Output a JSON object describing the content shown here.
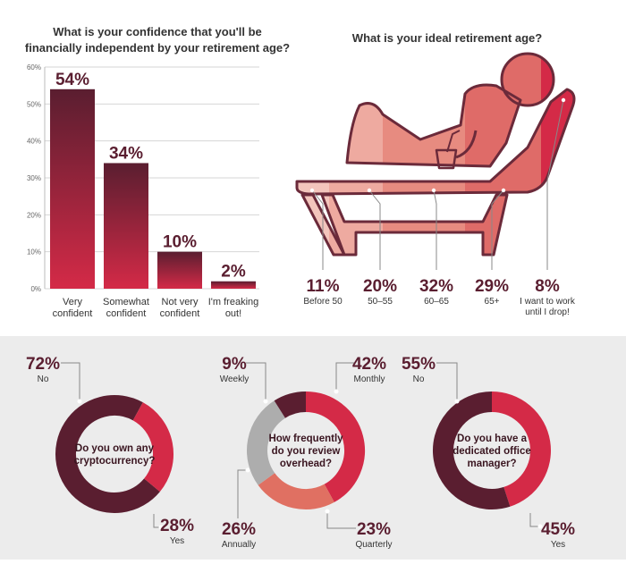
{
  "colors": {
    "dark": "#5a1e30",
    "red": "#d42a47",
    "salmon": "#e07062",
    "gray": "#adadad",
    "line": "#6b2a3a"
  },
  "chart_data": [
    {
      "type": "bar",
      "title": [
        "What is your confidence that you'll be",
        "financially independent by your retirement age?"
      ],
      "categories": [
        [
          "Very",
          "confident"
        ],
        [
          "Somewhat",
          "confident"
        ],
        [
          "Not very",
          "confident"
        ],
        [
          "I'm freaking",
          "out!"
        ]
      ],
      "values": [
        54,
        34,
        10,
        2
      ],
      "value_labels": [
        "54%",
        "34%",
        "10%",
        "2%"
      ],
      "yticks": [
        "0%",
        "10%",
        "20%",
        "30%",
        "40%",
        "50%",
        "60%"
      ],
      "ylim": [
        0,
        60
      ]
    },
    {
      "type": "bar",
      "title": "What is your ideal retirement age?",
      "categories": [
        [
          "Before 50"
        ],
        [
          "50–55"
        ],
        [
          "60–65"
        ],
        [
          "65+"
        ],
        [
          "I want to work",
          "until I drop!"
        ]
      ],
      "values": [
        11,
        20,
        32,
        29,
        8
      ],
      "value_labels": [
        "11%",
        "20%",
        "32%",
        "29%",
        "8%"
      ]
    },
    {
      "type": "pie",
      "center_text": [
        "Do you own any",
        "cryptocurrency?"
      ],
      "slices": [
        {
          "label": "No",
          "value": 72,
          "pct": "72%",
          "color": "#5a1e30"
        },
        {
          "label": "Yes",
          "value": 28,
          "pct": "28%",
          "color": "#d42a47"
        }
      ]
    },
    {
      "type": "pie",
      "center_text": [
        "How frequently",
        "do you review",
        "overhead?"
      ],
      "slices": [
        {
          "label": "Monthly",
          "value": 42,
          "pct": "42%",
          "color": "#d42a47"
        },
        {
          "label": "Quarterly",
          "value": 23,
          "pct": "23%",
          "color": "#e07062"
        },
        {
          "label": "Annually",
          "value": 26,
          "pct": "26%",
          "color": "#adadad"
        },
        {
          "label": "Weekly",
          "value": 9,
          "pct": "9%",
          "color": "#5a1e30"
        }
      ]
    },
    {
      "type": "pie",
      "center_text": [
        "Do you have a",
        "dedicated office",
        "manager?"
      ],
      "slices": [
        {
          "label": "Yes",
          "value": 45,
          "pct": "45%",
          "color": "#d42a47"
        },
        {
          "label": "No",
          "value": 55,
          "pct": "55%",
          "color": "#5a1e30"
        }
      ]
    }
  ]
}
